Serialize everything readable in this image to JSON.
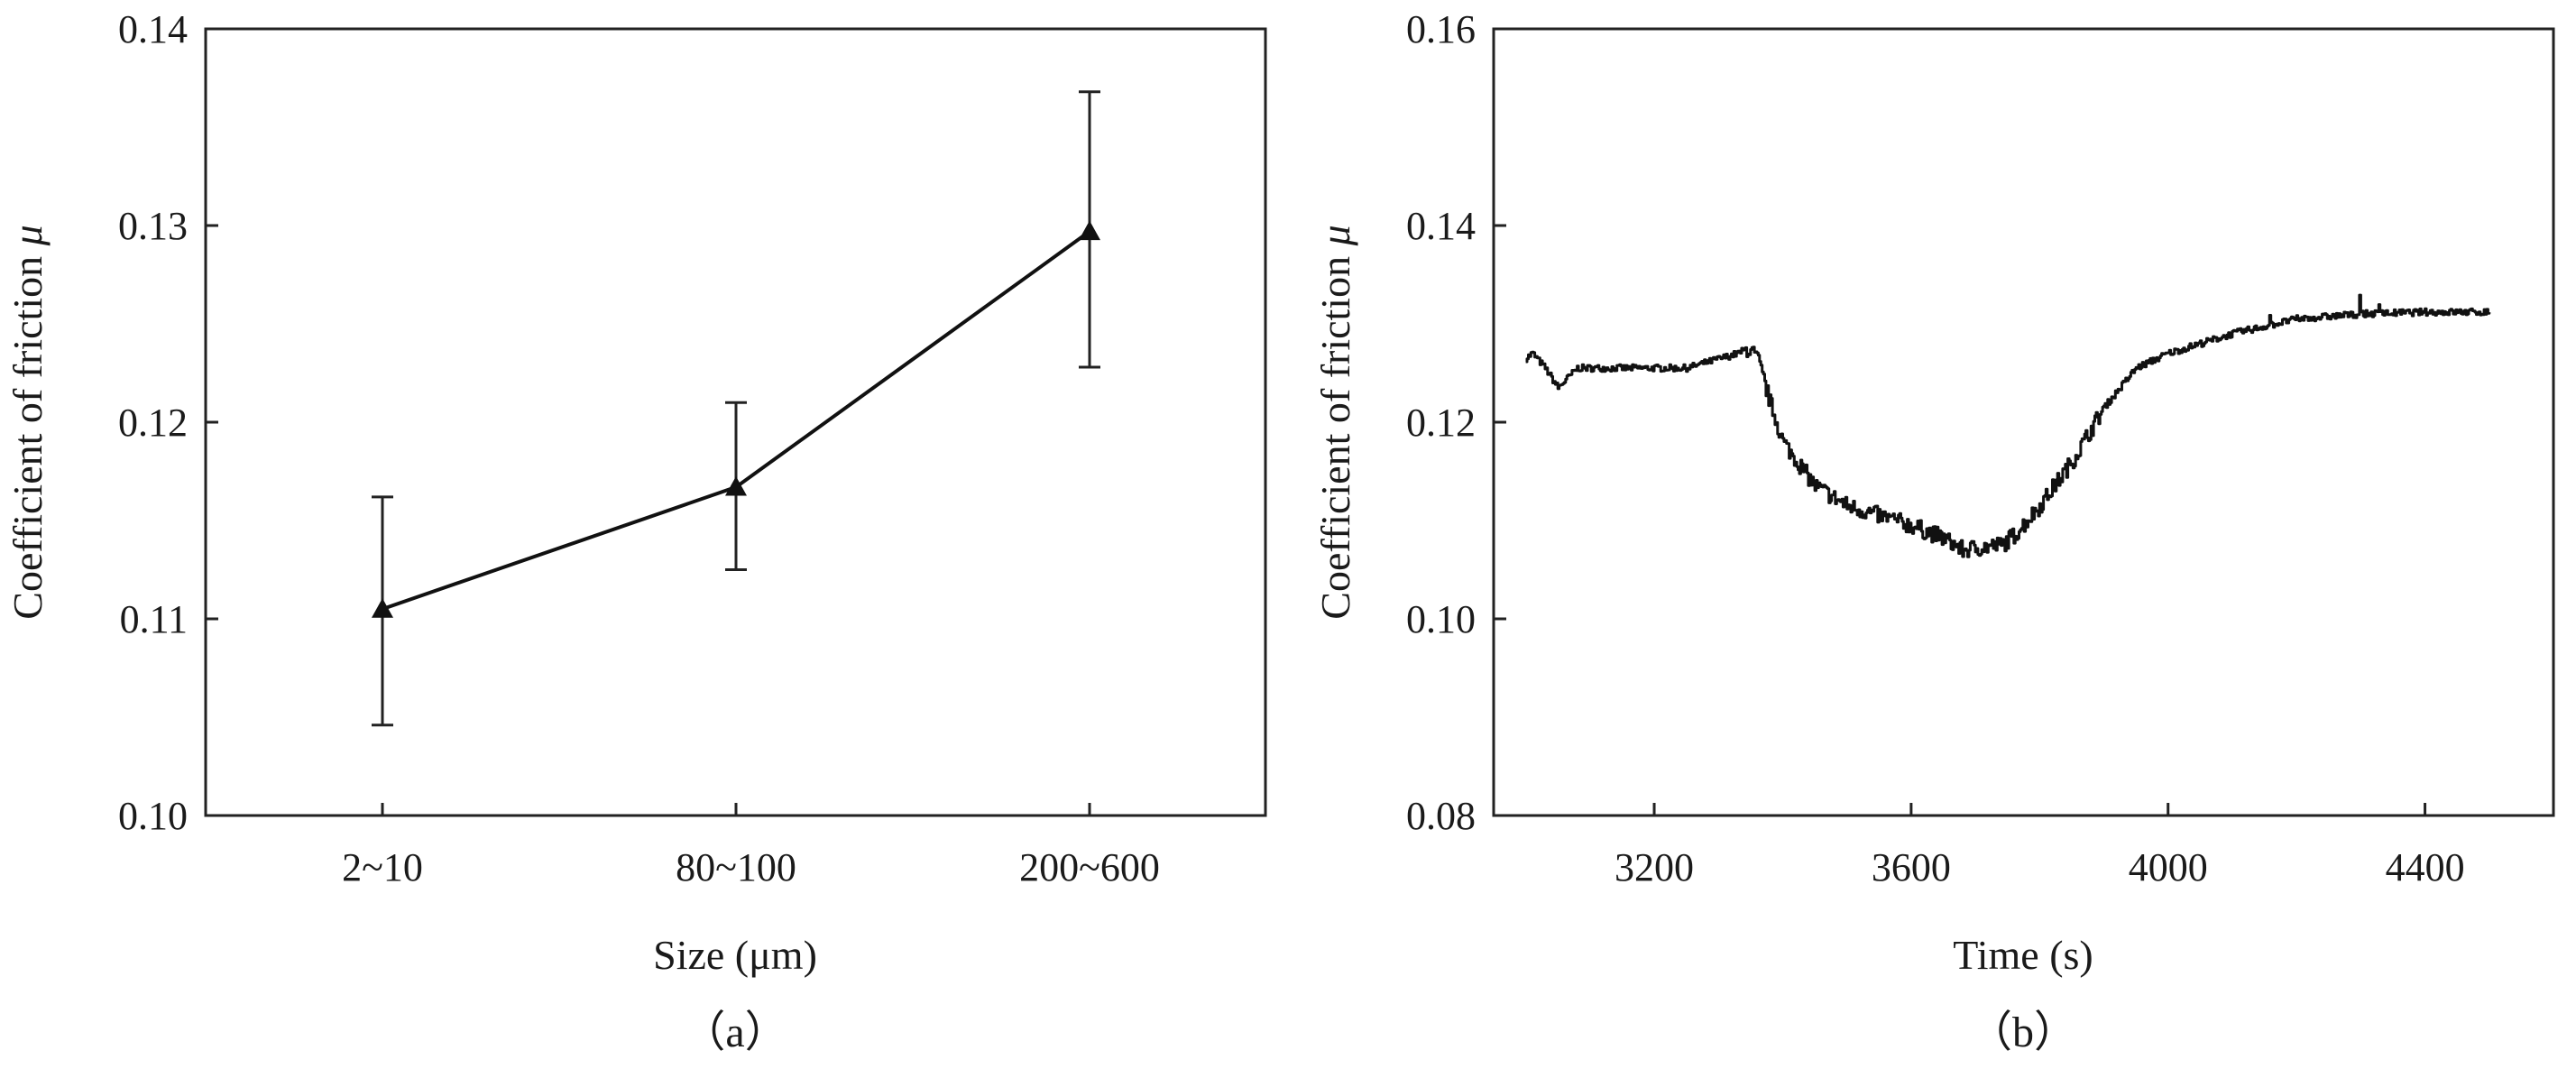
{
  "chart_data": [
    {
      "type": "line",
      "panel_label": "（a）",
      "xlabel": "Size (μm)",
      "ylabel_prefix": "Coefficient of friction",
      "ylabel_symbol": "μ",
      "categories": [
        "2~10",
        "80~100",
        "200~600"
      ],
      "values": [
        0.1105,
        0.1167,
        0.1297
      ],
      "error_low": [
        0.1046,
        0.1125,
        0.1228
      ],
      "error_high": [
        0.1162,
        0.121,
        0.1368
      ],
      "marker": "triangle",
      "ylim": [
        0.1,
        0.14
      ],
      "yticks": [
        "0.10",
        "0.11",
        "0.12",
        "0.13",
        "0.14"
      ],
      "grid": false
    },
    {
      "type": "line",
      "panel_label": "（b）",
      "xlabel": "Time (s)",
      "ylabel_prefix": "Coefficient of friction",
      "ylabel_symbol": "μ",
      "xlim": [
        2950,
        4600
      ],
      "ylim": [
        0.08,
        0.16
      ],
      "xticks": [
        "3200",
        "3600",
        "4000",
        "4400"
      ],
      "yticks": [
        "0.08",
        "0.10",
        "0.12",
        "0.14",
        "0.16"
      ],
      "grid": false,
      "x": [
        3000,
        3010,
        3030,
        3050,
        3080,
        3150,
        3250,
        3330,
        3345,
        3360,
        3380,
        3400,
        3450,
        3500,
        3550,
        3600,
        3650,
        3680,
        3700,
        3740,
        3760,
        3800,
        3850,
        3900,
        3950,
        4000,
        4050,
        4100,
        4200,
        4300,
        4400,
        4500
      ],
      "y": [
        0.1265,
        0.127,
        0.1255,
        0.1235,
        0.1255,
        0.1255,
        0.1255,
        0.127,
        0.1275,
        0.1265,
        0.122,
        0.118,
        0.1135,
        0.1115,
        0.1105,
        0.1095,
        0.1082,
        0.107,
        0.1072,
        0.1075,
        0.1085,
        0.1115,
        0.116,
        0.1215,
        0.1255,
        0.127,
        0.128,
        0.129,
        0.1305,
        0.131,
        0.1312,
        0.1312
      ]
    }
  ]
}
